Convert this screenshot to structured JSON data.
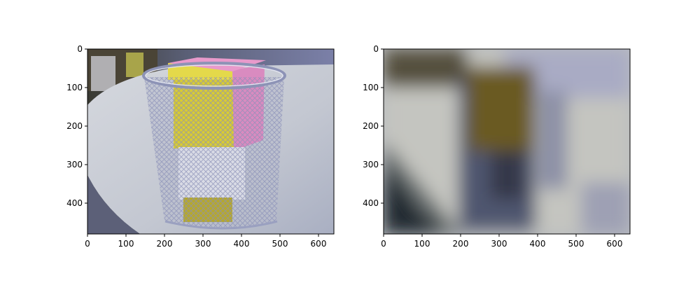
{
  "chart_data": [
    {
      "type": "image",
      "xlim": [
        0,
        640
      ],
      "ylim": [
        480,
        0
      ],
      "x_ticks": [
        0,
        100,
        200,
        300,
        400,
        500,
        600
      ],
      "y_ticks": [
        0,
        100,
        200,
        300,
        400
      ],
      "x_tick_labels": [
        "0",
        "100",
        "200",
        "300",
        "400",
        "500",
        "600"
      ],
      "y_tick_labels": [
        "0",
        "100",
        "200",
        "300",
        "400"
      ],
      "y_inverted": true,
      "grid": false,
      "image_description": "photo of a mesh wire pencil cup containing a yellow and a pink block on a white table",
      "colors": {
        "table": "#c9cdd6",
        "background_dark": "#2b2f3a",
        "yellow_block": "#d8cb33",
        "pink_block": "#d98bc0",
        "mesh": "#8a90b5"
      }
    },
    {
      "type": "image",
      "xlim": [
        0,
        640
      ],
      "ylim": [
        480,
        0
      ],
      "x_ticks": [
        0,
        100,
        200,
        300,
        400,
        500,
        600
      ],
      "y_ticks": [
        0,
        100,
        200,
        300,
        400
      ],
      "x_tick_labels": [
        "0",
        "100",
        "200",
        "300",
        "400",
        "500",
        "600"
      ],
      "y_tick_labels": [
        "0",
        "100",
        "200",
        "300",
        "400"
      ],
      "y_inverted": true,
      "grid": false,
      "image_description": "heavily blurred version of the same photo",
      "colors": {
        "light": "#c4c4c0",
        "dark": "#2d3338",
        "olive": "#6b5a22",
        "blue_grey": "#4c5368"
      }
    }
  ]
}
